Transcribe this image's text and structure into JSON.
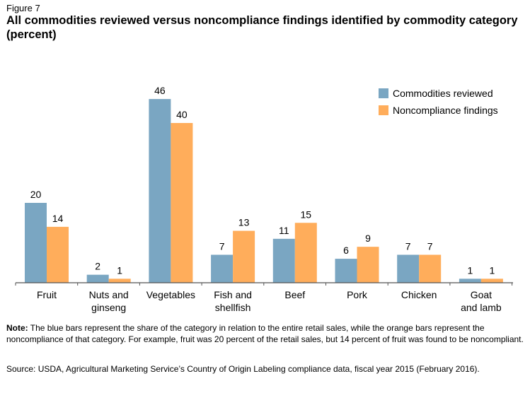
{
  "figure_label": "Figure 7",
  "figure_title": "All commodities reviewed versus noncompliance findings identified by commodity category (percent)",
  "note_label": "Note:",
  "note_text": " The blue bars represent the share of the category in relation to the entire retail sales, while the orange bars represent the noncompliance of that category. For example, fruit was 20 percent of the retail sales, but 14 percent of fruit was found to be noncompliant.",
  "source_text": "Source: USDA, Agricultural Marketing Service’s Country of Origin Labeling compliance data, fiscal year 2015 (February 2016).",
  "colors": {
    "reviewed": "#7aa6c2",
    "noncompliance": "#ffad5b",
    "axis": "#555555"
  },
  "chart_data": {
    "type": "bar",
    "categories": [
      "Fruit",
      "Nuts and ginseng",
      "Vegetables",
      "Fish and shellfish",
      "Beef",
      "Pork",
      "Chicken",
      "Goat and lamb"
    ],
    "category_lines": [
      [
        "Fruit"
      ],
      [
        "Nuts and",
        "ginseng"
      ],
      [
        "Vegetables"
      ],
      [
        "Fish and",
        "shellfish"
      ],
      [
        "Beef"
      ],
      [
        "Pork"
      ],
      [
        "Chicken"
      ],
      [
        "Goat",
        "and lamb"
      ]
    ],
    "series": [
      {
        "name": "Commodities reviewed",
        "values": [
          20,
          2,
          46,
          7,
          11,
          6,
          7,
          1
        ]
      },
      {
        "name": "Noncompliance findings",
        "values": [
          14,
          1,
          40,
          13,
          15,
          9,
          7,
          1
        ]
      }
    ],
    "ylim": [
      0,
      46
    ],
    "legend_position": "top-right",
    "grid": false
  }
}
